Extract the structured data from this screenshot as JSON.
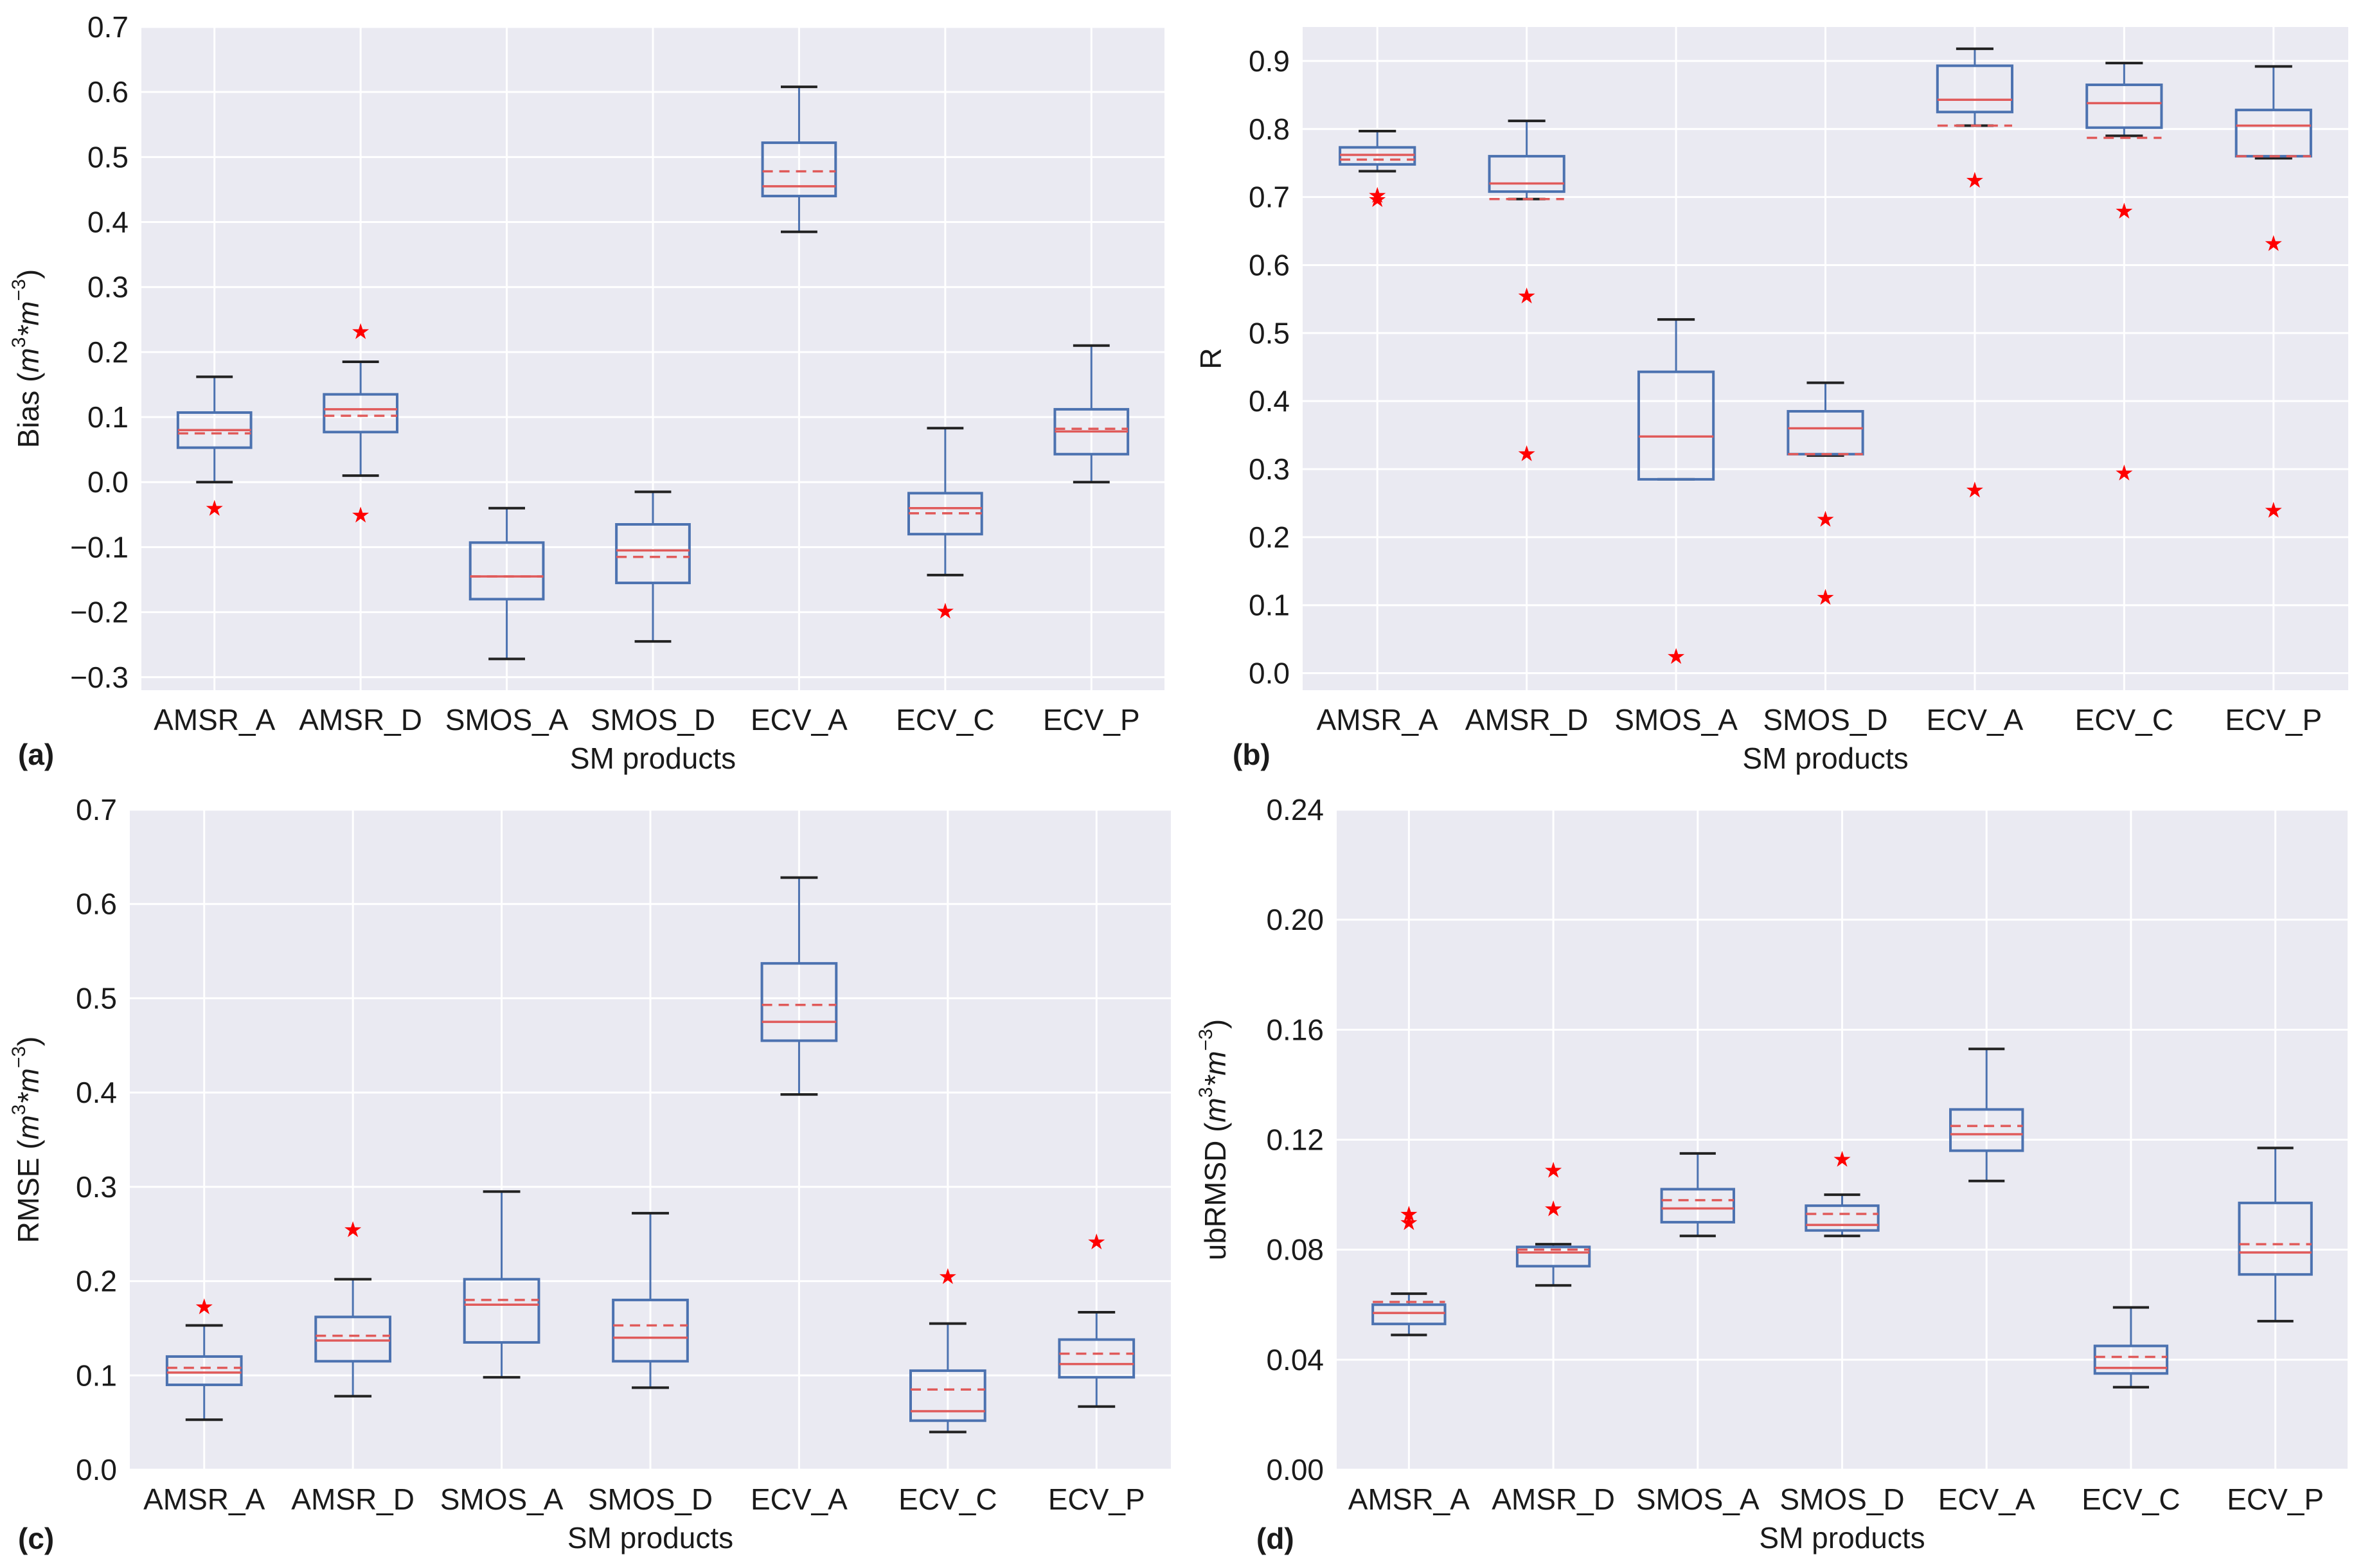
{
  "colors": {
    "plot_bg": "#eaeaf2",
    "grid": "#ffffff",
    "box": "#4c72b0",
    "median": "#e05a5a",
    "mean": "#e05a5a",
    "flier": "#ff0000",
    "whisker_cap": "#222222"
  },
  "chart_data": [
    {
      "type": "box",
      "panel_label": "(a)",
      "xlabel": "SM products",
      "ylabel": "Bias (m³*m⁻³)",
      "ylabel_main": "Bias (",
      "ylabel_math_base1": "m",
      "ylabel_math_sup1": "3",
      "ylabel_math_base2": "*m",
      "ylabel_math_sup2": "−3",
      "ylabel_tail": ")",
      "ylim": [
        -0.32,
        0.7
      ],
      "yticks": [
        -0.3,
        -0.2,
        -0.1,
        0.0,
        0.1,
        0.2,
        0.3,
        0.4,
        0.5,
        0.6,
        0.7
      ],
      "ytick_labels": [
        "−0.3",
        "−0.2",
        "−0.1",
        "0.0",
        "0.1",
        "0.2",
        "0.3",
        "0.4",
        "0.5",
        "0.6",
        "0.7"
      ],
      "categories": [
        "AMSR_A",
        "AMSR_D",
        "SMOS_A",
        "SMOS_D",
        "ECV_A",
        "ECV_C",
        "ECV_P"
      ],
      "boxes": [
        {
          "whislo": 0.0,
          "q1": 0.053,
          "med": 0.08,
          "mean": 0.075,
          "q3": 0.107,
          "whishi": 0.162,
          "fliers": [
            -0.04
          ]
        },
        {
          "whislo": 0.01,
          "q1": 0.077,
          "med": 0.112,
          "mean": 0.102,
          "q3": 0.135,
          "whishi": 0.185,
          "fliers": [
            0.232,
            -0.05
          ]
        },
        {
          "whislo": -0.272,
          "q1": -0.18,
          "med": -0.145,
          "mean": -0.145,
          "q3": -0.093,
          "whishi": -0.04,
          "fliers": []
        },
        {
          "whislo": -0.245,
          "q1": -0.155,
          "med": -0.105,
          "mean": -0.115,
          "q3": -0.065,
          "whishi": -0.015,
          "fliers": []
        },
        {
          "whislo": 0.385,
          "q1": 0.44,
          "med": 0.455,
          "mean": 0.478,
          "q3": 0.522,
          "whishi": 0.608,
          "fliers": []
        },
        {
          "whislo": -0.143,
          "q1": -0.08,
          "med": -0.04,
          "mean": -0.048,
          "q3": -0.017,
          "whishi": 0.083,
          "fliers": [
            -0.198
          ]
        },
        {
          "whislo": 0.0,
          "q1": 0.043,
          "med": 0.078,
          "mean": 0.082,
          "q3": 0.112,
          "whishi": 0.21,
          "fliers": []
        }
      ]
    },
    {
      "type": "box",
      "panel_label": "(b)",
      "xlabel": "SM products",
      "ylabel": "R",
      "ylabel_main": "R",
      "ylim": [
        -0.025,
        0.95
      ],
      "yticks": [
        0.0,
        0.1,
        0.2,
        0.3,
        0.4,
        0.5,
        0.6,
        0.7,
        0.8,
        0.9
      ],
      "ytick_labels": [
        "0.0",
        "0.1",
        "0.2",
        "0.3",
        "0.4",
        "0.5",
        "0.6",
        "0.7",
        "0.8",
        "0.9"
      ],
      "categories": [
        "AMSR_A",
        "AMSR_D",
        "SMOS_A",
        "SMOS_D",
        "ECV_A",
        "ECV_C",
        "ECV_P"
      ],
      "boxes": [
        {
          "whislo": 0.738,
          "q1": 0.748,
          "med": 0.762,
          "mean": 0.755,
          "q3": 0.773,
          "whishi": 0.797,
          "fliers": [
            0.703,
            0.697
          ]
        },
        {
          "whislo": 0.697,
          "q1": 0.708,
          "med": 0.72,
          "mean": 0.697,
          "q3": 0.76,
          "whishi": 0.812,
          "fliers": [
            0.555,
            0.323
          ]
        },
        {
          "whislo": 0.285,
          "q1": 0.285,
          "med": 0.348,
          "mean": 0.348,
          "q3": 0.443,
          "whishi": 0.52,
          "fliers": [
            0.025
          ]
        },
        {
          "whislo": 0.32,
          "q1": 0.322,
          "med": 0.36,
          "mean": 0.322,
          "q3": 0.385,
          "whishi": 0.427,
          "fliers": [
            0.227,
            0.112
          ]
        },
        {
          "whislo": 0.805,
          "q1": 0.825,
          "med": 0.843,
          "mean": 0.805,
          "q3": 0.893,
          "whishi": 0.918,
          "fliers": [
            0.725,
            0.27
          ]
        },
        {
          "whislo": 0.79,
          "q1": 0.802,
          "med": 0.838,
          "mean": 0.787,
          "q3": 0.865,
          "whishi": 0.897,
          "fliers": [
            0.68,
            0.295
          ]
        },
        {
          "whislo": 0.757,
          "q1": 0.76,
          "med": 0.805,
          "mean": 0.76,
          "q3": 0.828,
          "whishi": 0.892,
          "fliers": [
            0.632,
            0.24
          ]
        }
      ]
    },
    {
      "type": "box",
      "panel_label": "(c)",
      "xlabel": "SM products",
      "ylabel": "RMSE (m³*m⁻³)",
      "ylabel_main": "RMSE (",
      "ylabel_math_base1": "m",
      "ylabel_math_sup1": "3",
      "ylabel_math_base2": "*m",
      "ylabel_math_sup2": "−3",
      "ylabel_tail": ")",
      "ylim": [
        0.0,
        0.7
      ],
      "yticks": [
        0.0,
        0.1,
        0.2,
        0.3,
        0.4,
        0.5,
        0.6,
        0.7
      ],
      "ytick_labels": [
        "0.0",
        "0.1",
        "0.2",
        "0.3",
        "0.4",
        "0.5",
        "0.6",
        "0.7"
      ],
      "categories": [
        "AMSR_A",
        "AMSR_D",
        "SMOS_A",
        "SMOS_D",
        "ECV_A",
        "ECV_C",
        "ECV_P"
      ],
      "boxes": [
        {
          "whislo": 0.053,
          "q1": 0.09,
          "med": 0.103,
          "mean": 0.108,
          "q3": 0.12,
          "whishi": 0.153,
          "fliers": [
            0.173
          ]
        },
        {
          "whislo": 0.078,
          "q1": 0.115,
          "med": 0.137,
          "mean": 0.142,
          "q3": 0.162,
          "whishi": 0.202,
          "fliers": [
            0.255
          ]
        },
        {
          "whislo": 0.098,
          "q1": 0.135,
          "med": 0.175,
          "mean": 0.18,
          "q3": 0.202,
          "whishi": 0.295,
          "fliers": []
        },
        {
          "whislo": 0.087,
          "q1": 0.115,
          "med": 0.14,
          "mean": 0.153,
          "q3": 0.18,
          "whishi": 0.272,
          "fliers": []
        },
        {
          "whislo": 0.398,
          "q1": 0.455,
          "med": 0.475,
          "mean": 0.493,
          "q3": 0.537,
          "whishi": 0.628,
          "fliers": []
        },
        {
          "whislo": 0.04,
          "q1": 0.052,
          "med": 0.062,
          "mean": 0.085,
          "q3": 0.105,
          "whishi": 0.155,
          "fliers": [
            0.205
          ]
        },
        {
          "whislo": 0.067,
          "q1": 0.098,
          "med": 0.112,
          "mean": 0.123,
          "q3": 0.138,
          "whishi": 0.167,
          "fliers": [
            0.242
          ]
        }
      ]
    },
    {
      "type": "box",
      "panel_label": "(d)",
      "xlabel": "SM products",
      "ylabel": "ubRMSD (m³*m⁻³)",
      "ylabel_main": "ubRMSD (",
      "ylabel_math_base1": "m",
      "ylabel_math_sup1": "3",
      "ylabel_math_base2": "*m",
      "ylabel_math_sup2": "−3",
      "ylabel_tail": ")",
      "ylim": [
        0.0,
        0.24
      ],
      "yticks": [
        0.0,
        0.04,
        0.08,
        0.12,
        0.16,
        0.2,
        0.24
      ],
      "ytick_labels": [
        "0.00",
        "0.04",
        "0.08",
        "0.12",
        "0.16",
        "0.20",
        "0.24"
      ],
      "categories": [
        "AMSR_A",
        "AMSR_D",
        "SMOS_A",
        "SMOS_D",
        "ECV_A",
        "ECV_C",
        "ECV_P"
      ],
      "boxes": [
        {
          "whislo": 0.049,
          "q1": 0.053,
          "med": 0.057,
          "mean": 0.061,
          "q3": 0.06,
          "whishi": 0.064,
          "fliers": [
            0.093,
            0.09
          ]
        },
        {
          "whislo": 0.067,
          "q1": 0.074,
          "med": 0.079,
          "mean": 0.08,
          "q3": 0.081,
          "whishi": 0.082,
          "fliers": [
            0.109,
            0.095
          ]
        },
        {
          "whislo": 0.085,
          "q1": 0.09,
          "med": 0.095,
          "mean": 0.098,
          "q3": 0.102,
          "whishi": 0.115,
          "fliers": []
        },
        {
          "whislo": 0.085,
          "q1": 0.087,
          "med": 0.089,
          "mean": 0.093,
          "q3": 0.096,
          "whishi": 0.1,
          "fliers": [
            0.113
          ]
        },
        {
          "whislo": 0.105,
          "q1": 0.116,
          "med": 0.122,
          "mean": 0.125,
          "q3": 0.131,
          "whishi": 0.153,
          "fliers": []
        },
        {
          "whislo": 0.03,
          "q1": 0.035,
          "med": 0.037,
          "mean": 0.041,
          "q3": 0.045,
          "whishi": 0.059,
          "fliers": []
        },
        {
          "whislo": 0.054,
          "q1": 0.071,
          "med": 0.079,
          "mean": 0.082,
          "q3": 0.097,
          "whishi": 0.117,
          "fliers": []
        }
      ]
    }
  ]
}
